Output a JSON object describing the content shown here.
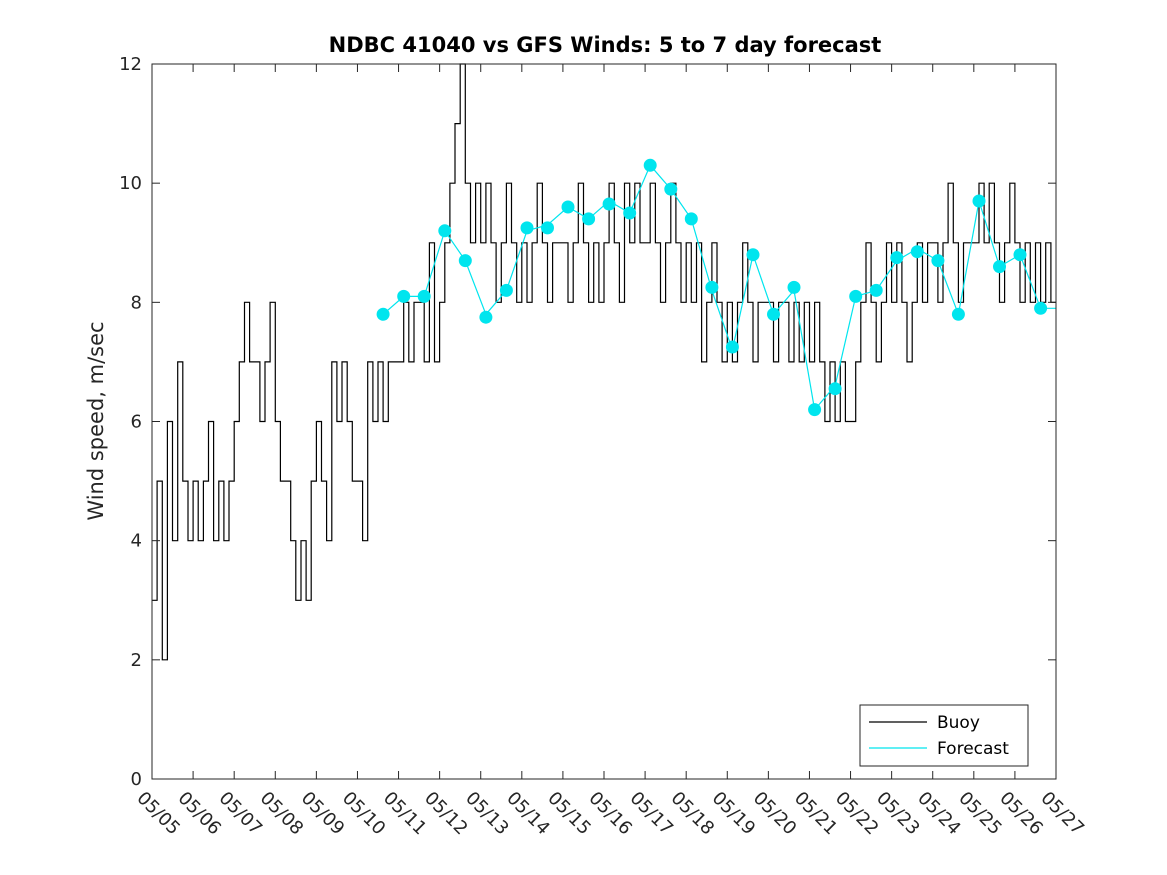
{
  "chart_data": {
    "type": "line",
    "title": "NDBC 41040 vs GFS Winds: 5 to 7 day forecast",
    "xlabel": "",
    "ylabel": "Wind speed, m/sec",
    "ylim": [
      0,
      12
    ],
    "yticks": [
      "0",
      "2",
      "4",
      "6",
      "8",
      "10",
      "12"
    ],
    "xlim": [
      "05/05",
      "05/27"
    ],
    "xticks": [
      "05/05",
      "05/06",
      "05/07",
      "05/08",
      "05/09",
      "05/10",
      "05/11",
      "05/12",
      "05/13",
      "05/14",
      "05/15",
      "05/16",
      "05/17",
      "05/18",
      "05/19",
      "05/20",
      "05/21",
      "05/22",
      "05/23",
      "05/24",
      "05/25",
      "05/26",
      "05/27"
    ],
    "grid": false,
    "legend_position": "bottom-right",
    "colors": {
      "buoy": "#000000",
      "forecast": "#00e5ee"
    },
    "series": [
      {
        "name": "Buoy",
        "style": "line",
        "daily_values": [
          {
            "date": "05/05",
            "values": [
              3,
              5,
              2,
              6,
              4,
              7,
              5,
              4
            ]
          },
          {
            "date": "05/06",
            "values": [
              5,
              4,
              5,
              6,
              4,
              5,
              4,
              5
            ]
          },
          {
            "date": "05/07",
            "values": [
              6,
              7,
              8,
              7,
              7,
              6,
              7,
              8
            ]
          },
          {
            "date": "05/08",
            "values": [
              6,
              5,
              5,
              4,
              3,
              4,
              3,
              5
            ]
          },
          {
            "date": "05/09",
            "values": [
              6,
              5,
              4,
              7,
              6,
              7,
              6,
              5
            ]
          },
          {
            "date": "05/10",
            "values": [
              5,
              4,
              7,
              6,
              7,
              6,
              7,
              7
            ]
          },
          {
            "date": "05/11",
            "values": [
              7,
              8,
              7,
              8,
              8,
              7,
              9,
              7
            ]
          },
          {
            "date": "05/12",
            "values": [
              8,
              9,
              10,
              11,
              12,
              10,
              9,
              10
            ]
          },
          {
            "date": "05/13",
            "values": [
              9,
              10,
              9,
              8,
              9,
              10,
              9,
              8
            ]
          },
          {
            "date": "05/14",
            "values": [
              9,
              8,
              9,
              10,
              9,
              8,
              9,
              9
            ]
          },
          {
            "date": "05/15",
            "values": [
              9,
              8,
              9,
              10,
              9,
              8,
              9,
              8
            ]
          },
          {
            "date": "05/16",
            "values": [
              9,
              10,
              9,
              8,
              10,
              9,
              10,
              9
            ]
          },
          {
            "date": "05/17",
            "values": [
              9,
              10,
              9,
              8,
              9,
              10,
              9,
              8
            ]
          },
          {
            "date": "05/18",
            "values": [
              9,
              8,
              9,
              7,
              8,
              9,
              8,
              7
            ]
          },
          {
            "date": "05/19",
            "values": [
              8,
              7,
              8,
              9,
              8,
              7,
              8,
              8
            ]
          },
          {
            "date": "05/20",
            "values": [
              8,
              7,
              8,
              8,
              7,
              8,
              7,
              8
            ]
          },
          {
            "date": "05/21",
            "values": [
              7,
              8,
              7,
              6,
              7,
              6,
              7,
              6
            ]
          },
          {
            "date": "05/22",
            "values": [
              6,
              7,
              8,
              9,
              8,
              7,
              8,
              9
            ]
          },
          {
            "date": "05/23",
            "values": [
              8,
              9,
              8,
              7,
              8,
              9,
              8,
              9
            ]
          },
          {
            "date": "05/24",
            "values": [
              9,
              8,
              9,
              10,
              9,
              8,
              9,
              9
            ]
          },
          {
            "date": "05/25",
            "values": [
              9,
              10,
              9,
              10,
              9,
              8,
              9,
              10
            ]
          },
          {
            "date": "05/26",
            "values": [
              9,
              8,
              9,
              8,
              9,
              8,
              9,
              8
            ]
          }
        ]
      },
      {
        "name": "Forecast",
        "style": "line",
        "points": [
          [
            "05/10 15:00",
            7.8
          ],
          [
            "05/11 03:00",
            8.1
          ],
          [
            "05/11 15:00",
            8.1
          ],
          [
            "05/12 03:00",
            9.2
          ],
          [
            "05/12 15:00",
            8.7
          ],
          [
            "05/13 03:00",
            7.8
          ],
          [
            "05/13 15:00",
            8.2
          ],
          [
            "05/14 03:00",
            9.2
          ],
          [
            "05/14 15:00",
            9.3
          ],
          [
            "05/15 03:00",
            9.6
          ],
          [
            "05/15 15:00",
            9.4
          ],
          [
            "05/16 03:00",
            9.7
          ],
          [
            "05/16 15:00",
            9.5
          ],
          [
            "05/17 03:00",
            10.3
          ],
          [
            "05/17 15:00",
            9.9
          ],
          [
            "05/18 03:00",
            9.4
          ],
          [
            "05/18 15:00",
            8.2
          ],
          [
            "05/19 03:00",
            7.2
          ],
          [
            "05/19 15:00",
            8.8
          ],
          [
            "05/20 03:00",
            7.8
          ],
          [
            "05/20 15:00",
            8.2
          ],
          [
            "05/21 03:00",
            6.2
          ],
          [
            "05/21 15:00",
            6.6
          ],
          [
            "05/22 03:00",
            8.1
          ],
          [
            "05/22 15:00",
            8.2
          ],
          [
            "05/23 03:00",
            8.7
          ],
          [
            "05/23 15:00",
            8.9
          ],
          [
            "05/24 03:00",
            8.7
          ],
          [
            "05/24 15:00",
            7.8
          ],
          [
            "05/25 03:00",
            9.7
          ],
          [
            "05/25 15:00",
            8.6
          ],
          [
            "05/26 03:00",
            8.8
          ],
          [
            "05/26 15:00",
            7.9
          ],
          [
            "05/27 00:00",
            7.9
          ]
        ]
      },
      {
        "name": "",
        "style": "markers",
        "points": [
          [
            "05/10 15:00",
            7.8
          ],
          [
            "05/11 03:00",
            8.1
          ],
          [
            "05/11 15:00",
            8.1
          ],
          [
            "05/12 03:00",
            9.2
          ],
          [
            "05/12 15:00",
            8.7
          ],
          [
            "05/13 03:00",
            7.75
          ],
          [
            "05/13 15:00",
            8.2
          ],
          [
            "05/14 03:00",
            9.25
          ],
          [
            "05/14 15:00",
            9.25
          ],
          [
            "05/15 03:00",
            9.6
          ],
          [
            "05/15 15:00",
            9.4
          ],
          [
            "05/16 03:00",
            9.65
          ],
          [
            "05/16 15:00",
            9.5
          ],
          [
            "05/17 03:00",
            10.3
          ],
          [
            "05/17 15:00",
            9.9
          ],
          [
            "05/18 03:00",
            9.4
          ],
          [
            "05/18 15:00",
            8.25
          ],
          [
            "05/19 03:00",
            7.25
          ],
          [
            "05/19 15:00",
            8.8
          ],
          [
            "05/20 03:00",
            7.8
          ],
          [
            "05/20 15:00",
            8.25
          ],
          [
            "05/21 03:00",
            6.2
          ],
          [
            "05/21 15:00",
            6.55
          ],
          [
            "05/22 03:00",
            8.1
          ],
          [
            "05/22 15:00",
            8.2
          ],
          [
            "05/23 03:00",
            8.75
          ],
          [
            "05/23 15:00",
            8.85
          ],
          [
            "05/24 03:00",
            8.7
          ],
          [
            "05/24 15:00",
            7.8
          ],
          [
            "05/25 03:00",
            9.7
          ],
          [
            "05/25 15:00",
            8.6
          ],
          [
            "05/26 03:00",
            8.8
          ],
          [
            "05/26 15:00",
            7.9
          ]
        ]
      }
    ]
  }
}
